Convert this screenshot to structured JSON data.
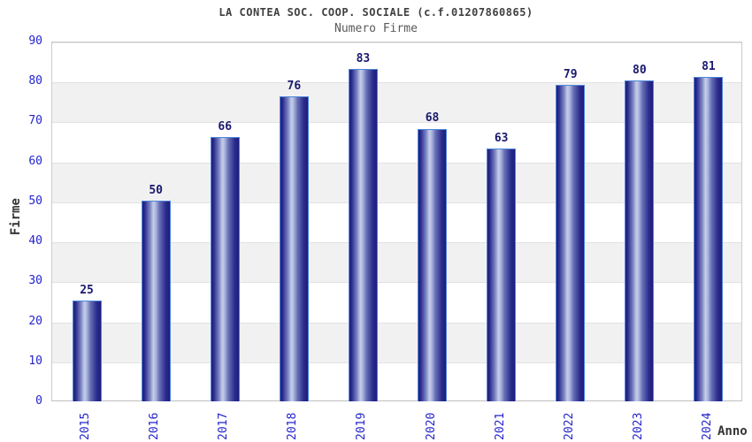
{
  "chart_data": {
    "type": "bar",
    "title": "LA CONTEA SOC. COOP. SOCIALE (c.f.01207860865)",
    "subtitle": "Numero Firme",
    "xlabel": "Anno",
    "ylabel": "Firme",
    "categories": [
      "2015",
      "2016",
      "2017",
      "2018",
      "2019",
      "2020",
      "2021",
      "2022",
      "2023",
      "2024"
    ],
    "values": [
      25,
      50,
      66,
      76,
      83,
      68,
      63,
      79,
      80,
      81
    ],
    "ylim": [
      0,
      90
    ],
    "yticks": [
      0,
      10,
      20,
      30,
      40,
      50,
      60,
      70,
      80,
      90
    ],
    "grid": true,
    "legend": false,
    "band_pattern": "alternating-horizontal",
    "colors": {
      "tick_label": "#2323cc",
      "value_label": "#191970",
      "title_text": "#404040",
      "subtitle_text": "#5a5a5a",
      "axis_title": "#333333",
      "band_gray": "#f1f1f1",
      "gridline": "#e2e2e2",
      "plot_border": "#cccccc",
      "bar_border": "#4e86d9",
      "bar_dark": "#1d1d7c",
      "bar_mid": "#2b2b8d",
      "bar_light": "#c7cee9"
    }
  }
}
